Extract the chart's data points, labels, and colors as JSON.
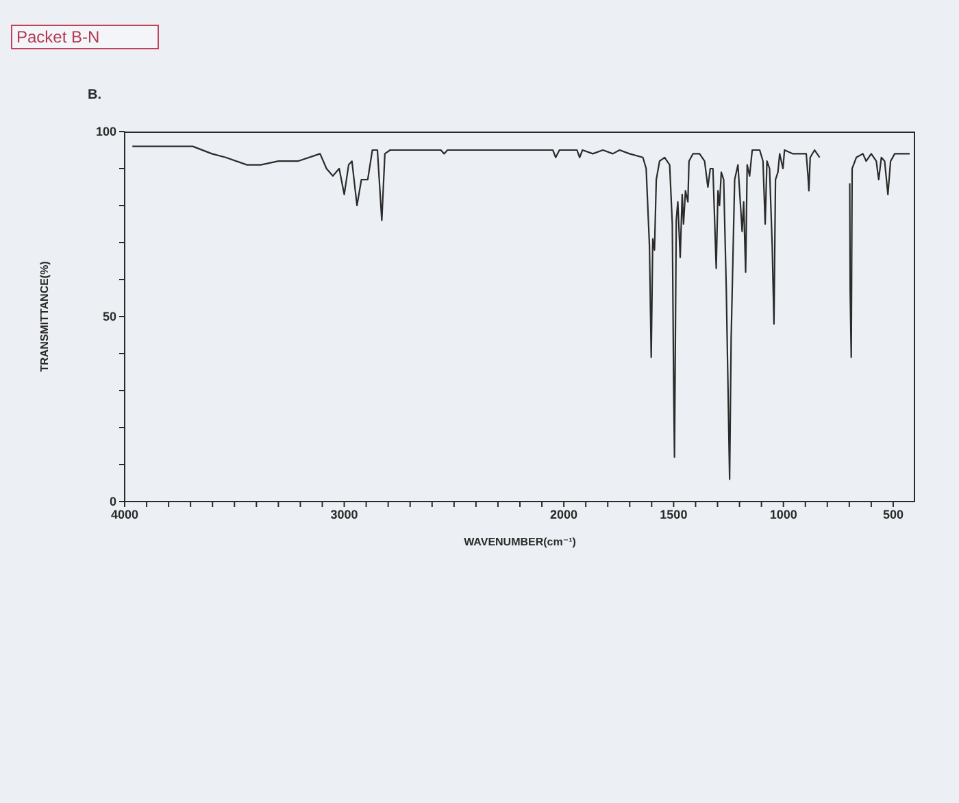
{
  "chart_data": {
    "type": "line",
    "title": "B.",
    "xlabel": "WAVENUMBER(cm⁻¹)",
    "ylabel": "TRANSMITTANCE(%)",
    "annotations": [
      "Packet B-N"
    ],
    "x": [
      3965,
      3690,
      3603,
      3540,
      3443,
      3380,
      3300,
      3211,
      3110,
      3081,
      3052,
      3023,
      3000,
      2980,
      2965,
      2942,
      2922,
      2893,
      2872,
      2849,
      2829,
      2815,
      2791,
      2560,
      2545,
      2530,
      2050,
      2037,
      2020,
      1940,
      1928,
      1915,
      1868,
      1822,
      1777,
      1746,
      1701,
      1640,
      1625,
      1610,
      1602,
      1595,
      1587,
      1579,
      1564,
      1541,
      1518,
      1506,
      1500,
      1496,
      1488,
      1481,
      1470,
      1461,
      1455,
      1446,
      1435,
      1430,
      1412,
      1382,
      1359,
      1344,
      1333,
      1321,
      1306,
      1298,
      1291,
      1283,
      1272,
      1260,
      1245,
      1238,
      1222,
      1207,
      1188,
      1181,
      1172,
      1165,
      1154,
      1142,
      1108,
      1093,
      1083,
      1075,
      1063,
      1051,
      1043,
      1036,
      1025,
      1017,
      1002,
      995,
      957,
      926,
      896,
      888,
      884,
      878,
      858,
      835,
      760,
      698,
      696,
      691,
      687,
      668,
      638,
      623,
      600,
      577,
      566,
      554,
      539,
      524,
      512,
      493,
      456,
      425
    ],
    "series": [
      {
        "color": "#2b2b2b",
        "values": [
          96,
          96,
          94,
          93,
          91,
          91,
          92,
          92,
          94,
          90,
          88,
          90,
          83,
          91,
          92,
          80,
          87,
          87,
          95,
          95,
          76,
          94,
          95,
          95,
          94,
          95,
          95,
          93,
          95,
          95,
          93,
          95,
          94,
          95,
          94,
          95,
          94,
          93,
          90,
          69,
          39,
          71,
          68,
          87,
          92,
          93,
          91,
          75,
          32,
          12,
          76,
          81,
          66,
          83,
          75,
          84,
          81,
          92,
          94,
          94,
          92,
          85,
          90,
          90,
          63,
          84,
          80,
          89,
          87,
          57,
          6,
          44,
          87,
          91,
          73,
          81,
          62,
          91,
          88,
          95,
          95,
          92,
          75,
          92,
          90,
          69,
          48,
          87,
          89,
          94,
          90,
          95,
          94,
          94,
          94,
          88,
          84,
          93,
          95,
          93,
          null,
          86,
          57,
          39,
          90,
          93,
          94,
          92,
          94,
          92,
          87,
          93,
          92,
          83,
          92,
          94,
          94,
          94
        ]
      }
    ],
    "xlim": [
      4000,
      400
    ],
    "xticks": [
      4000,
      {
        "value": 3900,
        "label": null
      },
      {
        "value": 3800,
        "label": null
      },
      {
        "value": 3700,
        "label": null
      },
      {
        "value": 3600,
        "label": null
      },
      {
        "value": 3500,
        "label": null
      },
      {
        "value": 3400,
        "label": null
      },
      {
        "value": 3300,
        "label": null
      },
      {
        "value": 3200,
        "label": null
      },
      {
        "value": 3100,
        "label": null
      },
      3000,
      {
        "value": 2900,
        "label": null
      },
      {
        "value": 2800,
        "label": null
      },
      {
        "value": 2700,
        "label": null
      },
      {
        "value": 2600,
        "label": null
      },
      {
        "value": 2500,
        "label": null
      },
      {
        "value": 2400,
        "label": null
      },
      {
        "value": 2300,
        "label": null
      },
      {
        "value": 2200,
        "label": null
      },
      {
        "value": 2100,
        "label": null
      },
      2000,
      {
        "value": 1900,
        "label": null
      },
      {
        "value": 1800,
        "label": null
      },
      {
        "value": 1700,
        "label": null
      },
      {
        "value": 1600,
        "label": null
      },
      1500,
      {
        "value": 1400,
        "label": null
      },
      {
        "value": 1300,
        "label": null
      },
      {
        "value": 1200,
        "label": null
      },
      {
        "value": 1100,
        "label": null
      },
      1000,
      {
        "value": 900,
        "label": null
      },
      {
        "value": 800,
        "label": null
      },
      {
        "value": 700,
        "label": null
      },
      {
        "value": 600,
        "label": null
      },
      500
    ],
    "ylim": [
      0,
      100
    ],
    "yticks": [
      0,
      {
        "value": 10,
        "label": null
      },
      {
        "value": 20,
        "label": null
      },
      {
        "value": 30,
        "label": null
      },
      {
        "value": 40,
        "label": null
      },
      50,
      {
        "value": 60,
        "label": null
      },
      {
        "value": 70,
        "label": null
      },
      {
        "value": 80,
        "label": null
      },
      {
        "value": 90,
        "label": null
      },
      100
    ],
    "marker": "none",
    "line_style": "solid"
  }
}
